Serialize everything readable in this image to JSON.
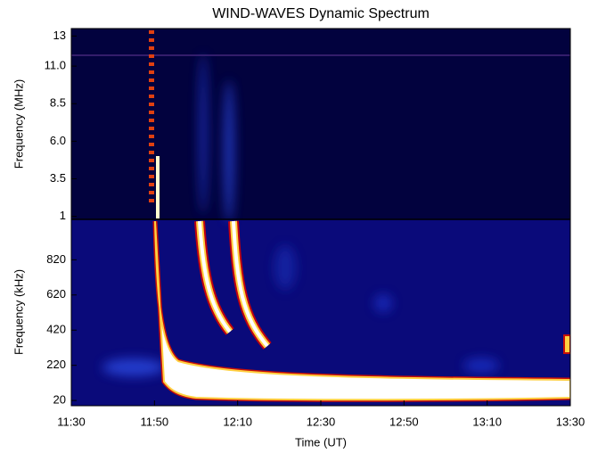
{
  "chart_data": [
    {
      "type": "spectrogram",
      "title": "WIND-WAVES Dynamic Spectrum",
      "ylabel": "Frequency (MHz)",
      "xlim": [
        "11:30",
        "13:30"
      ],
      "ylim": [
        0.8,
        13.5
      ],
      "yticks": [
        1,
        {
          "value": 3.5,
          "label": "3.5"
        },
        {
          "value": 6.0,
          "label": "6.0"
        },
        {
          "value": 8.5,
          "label": "8.5"
        },
        {
          "value": 11.0,
          "label": "11.0"
        },
        13
      ]
    },
    {
      "type": "spectrogram",
      "ylabel": "Frequency (kHz)",
      "xlabel": "Time (UT)",
      "xlim": [
        "11:30",
        "13:30"
      ],
      "ylim": [
        -10,
        1050
      ],
      "yticks": [
        20,
        220,
        420,
        620,
        820
      ],
      "xticks": [
        "11:30",
        "11:50",
        "12:10",
        "12:30",
        "12:50",
        "13:10",
        "13:30"
      ]
    }
  ]
}
